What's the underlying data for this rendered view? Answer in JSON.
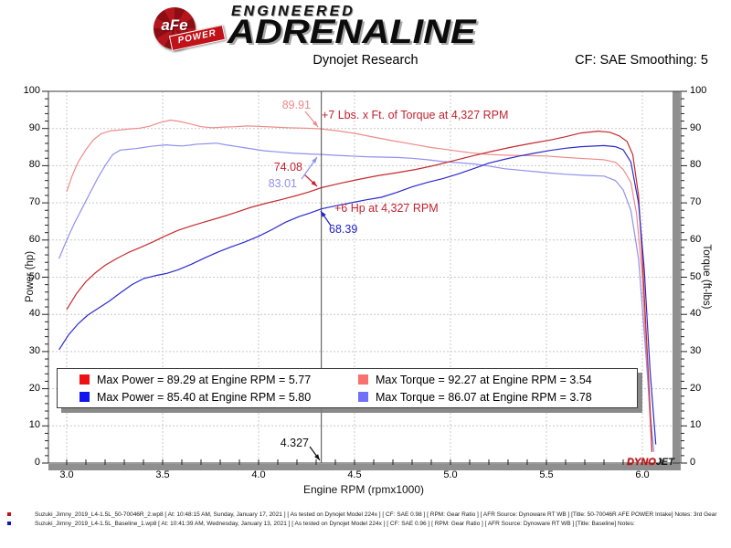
{
  "header": {
    "brand_circle_text": "aFe",
    "brand_banner_text": "POWER",
    "brand_line1": "ENGINEERED",
    "brand_line2": "ADRENALINE",
    "title": "Dynojet Research",
    "cf_label": "CF: SAE Smoothing: 5"
  },
  "chart_data": {
    "type": "line",
    "title": "Dynojet Research",
    "xlabel": "Engine RPM (rpmx1000)",
    "ylabel_left": "Power (hp)",
    "ylabel_right": "Torque (ft-lbs)",
    "xlim": [
      2.9,
      6.2
    ],
    "ylim": [
      0,
      100
    ],
    "grid": true,
    "x_ticks": [
      "3.0",
      "3.5",
      "4.0",
      "4.5",
      "5.0",
      "5.5",
      "6.0"
    ],
    "y_ticks": [
      "0",
      "10",
      "20",
      "30",
      "40",
      "50",
      "60",
      "70",
      "80",
      "90",
      "100"
    ],
    "cursor_rpm": 4.327,
    "series": [
      {
        "name": "torque-intake",
        "color": "#ee8b8b",
        "points": [
          [
            3.0,
            73
          ],
          [
            3.03,
            77.5
          ],
          [
            3.06,
            81
          ],
          [
            3.1,
            84.3
          ],
          [
            3.14,
            87
          ],
          [
            3.18,
            88.6
          ],
          [
            3.23,
            89.4
          ],
          [
            3.28,
            89.6
          ],
          [
            3.33,
            89.9
          ],
          [
            3.38,
            90.1
          ],
          [
            3.43,
            90.6
          ],
          [
            3.48,
            91.5
          ],
          [
            3.54,
            92.27
          ],
          [
            3.59,
            91.9
          ],
          [
            3.64,
            91.3
          ],
          [
            3.7,
            90.5
          ],
          [
            3.76,
            90.2
          ],
          [
            3.82,
            90.4
          ],
          [
            3.88,
            90.5
          ],
          [
            3.94,
            90.7
          ],
          [
            4.0,
            90.6
          ],
          [
            4.08,
            90.4
          ],
          [
            4.16,
            90.2
          ],
          [
            4.24,
            90.1
          ],
          [
            4.327,
            89.91
          ],
          [
            4.42,
            89.3
          ],
          [
            4.5,
            88.7
          ],
          [
            4.6,
            87.7
          ],
          [
            4.7,
            86.7
          ],
          [
            4.8,
            85.8
          ],
          [
            4.9,
            84.9
          ],
          [
            5.0,
            84.2
          ],
          [
            5.1,
            83.5
          ],
          [
            5.2,
            83.0
          ],
          [
            5.3,
            82.8
          ],
          [
            5.4,
            82.7
          ],
          [
            5.5,
            82.6
          ],
          [
            5.6,
            82.2
          ],
          [
            5.7,
            81.9
          ],
          [
            5.8,
            81.6
          ],
          [
            5.86,
            80.9
          ],
          [
            5.9,
            79.0
          ],
          [
            5.94,
            75.5
          ],
          [
            5.97,
            67
          ],
          [
            6.0,
            50
          ],
          [
            6.02,
            30
          ],
          [
            6.04,
            12
          ],
          [
            6.05,
            3
          ]
        ]
      },
      {
        "name": "torque-baseline",
        "color": "#9090ee",
        "points": [
          [
            2.96,
            55
          ],
          [
            3.0,
            60
          ],
          [
            3.04,
            64.5
          ],
          [
            3.08,
            68.5
          ],
          [
            3.12,
            72.5
          ],
          [
            3.16,
            76.5
          ],
          [
            3.2,
            80
          ],
          [
            3.24,
            83
          ],
          [
            3.28,
            84.2
          ],
          [
            3.32,
            84.4
          ],
          [
            3.36,
            84.6
          ],
          [
            3.4,
            84.9
          ],
          [
            3.44,
            85.2
          ],
          [
            3.48,
            85.4
          ],
          [
            3.52,
            85.6
          ],
          [
            3.56,
            85.4
          ],
          [
            3.6,
            85.3
          ],
          [
            3.64,
            85.5
          ],
          [
            3.68,
            85.8
          ],
          [
            3.73,
            85.9
          ],
          [
            3.78,
            86.07
          ],
          [
            3.83,
            85.6
          ],
          [
            3.88,
            85.2
          ],
          [
            3.93,
            84.8
          ],
          [
            3.98,
            84.4
          ],
          [
            4.03,
            84.0
          ],
          [
            4.1,
            83.7
          ],
          [
            4.17,
            83.4
          ],
          [
            4.24,
            83.2
          ],
          [
            4.327,
            83.01
          ],
          [
            4.4,
            82.8
          ],
          [
            4.48,
            82.6
          ],
          [
            4.56,
            82.4
          ],
          [
            4.64,
            82.3
          ],
          [
            4.72,
            82.2
          ],
          [
            4.8,
            82.0
          ],
          [
            4.88,
            81.6
          ],
          [
            4.96,
            81.1
          ],
          [
            5.04,
            80.8
          ],
          [
            5.12,
            80.5
          ],
          [
            5.2,
            79.9
          ],
          [
            5.28,
            79.2
          ],
          [
            5.36,
            78.8
          ],
          [
            5.44,
            78.4
          ],
          [
            5.52,
            78.0
          ],
          [
            5.6,
            77.7
          ],
          [
            5.7,
            77.4
          ],
          [
            5.8,
            77.2
          ],
          [
            5.86,
            76.0
          ],
          [
            5.9,
            73.5
          ],
          [
            5.94,
            68
          ],
          [
            5.98,
            55
          ],
          [
            6.01,
            35
          ],
          [
            6.04,
            14
          ],
          [
            6.06,
            3
          ]
        ]
      },
      {
        "name": "power-intake",
        "color": "#c62a2e",
        "points": [
          [
            3.0,
            41.3
          ],
          [
            3.05,
            45.5
          ],
          [
            3.1,
            48.8
          ],
          [
            3.15,
            51.2
          ],
          [
            3.2,
            53.2
          ],
          [
            3.26,
            55
          ],
          [
            3.32,
            56.6
          ],
          [
            3.38,
            57.9
          ],
          [
            3.45,
            59.5
          ],
          [
            3.51,
            61
          ],
          [
            3.58,
            62.6
          ],
          [
            3.65,
            63.8
          ],
          [
            3.72,
            64.9
          ],
          [
            3.8,
            66.1
          ],
          [
            3.88,
            67.4
          ],
          [
            3.96,
            68.8
          ],
          [
            4.04,
            69.9
          ],
          [
            4.12,
            70.9
          ],
          [
            4.2,
            72.0
          ],
          [
            4.26,
            72.9
          ],
          [
            4.327,
            74.08
          ],
          [
            4.42,
            75.2
          ],
          [
            4.52,
            76.3
          ],
          [
            4.62,
            77.3
          ],
          [
            4.72,
            78.1
          ],
          [
            4.82,
            79.0
          ],
          [
            4.92,
            80.1
          ],
          [
            5.02,
            81.4
          ],
          [
            5.12,
            82.7
          ],
          [
            5.22,
            83.9
          ],
          [
            5.32,
            85.0
          ],
          [
            5.42,
            86.0
          ],
          [
            5.52,
            86.9
          ],
          [
            5.6,
            87.8
          ],
          [
            5.68,
            88.8
          ],
          [
            5.77,
            89.29
          ],
          [
            5.83,
            89.0
          ],
          [
            5.88,
            88.0
          ],
          [
            5.92,
            86.5
          ],
          [
            5.95,
            83
          ],
          [
            5.98,
            72
          ],
          [
            6.0,
            55
          ],
          [
            6.02,
            35
          ],
          [
            6.04,
            15
          ],
          [
            6.05,
            3
          ]
        ]
      },
      {
        "name": "power-baseline",
        "color": "#2a2ace",
        "points": [
          [
            2.96,
            30.5
          ],
          [
            3.01,
            34.5
          ],
          [
            3.06,
            37.5
          ],
          [
            3.11,
            39.8
          ],
          [
            3.16,
            41.5
          ],
          [
            3.22,
            43.5
          ],
          [
            3.28,
            45.8
          ],
          [
            3.34,
            48
          ],
          [
            3.4,
            49.6
          ],
          [
            3.46,
            50.4
          ],
          [
            3.52,
            51
          ],
          [
            3.58,
            52
          ],
          [
            3.65,
            53.5
          ],
          [
            3.72,
            55.2
          ],
          [
            3.79,
            56.8
          ],
          [
            3.86,
            58.2
          ],
          [
            3.93,
            59.5
          ],
          [
            4.0,
            61
          ],
          [
            4.07,
            62.8
          ],
          [
            4.14,
            64.8
          ],
          [
            4.21,
            66.3
          ],
          [
            4.27,
            67.3
          ],
          [
            4.327,
            68.39
          ],
          [
            4.4,
            69.2
          ],
          [
            4.48,
            70
          ],
          [
            4.56,
            70.8
          ],
          [
            4.64,
            71.5
          ],
          [
            4.72,
            72.8
          ],
          [
            4.8,
            74.3
          ],
          [
            4.88,
            75.5
          ],
          [
            4.96,
            76.5
          ],
          [
            5.04,
            77.8
          ],
          [
            5.12,
            79.2
          ],
          [
            5.2,
            80.7
          ],
          [
            5.28,
            81.7
          ],
          [
            5.36,
            82.6
          ],
          [
            5.44,
            83.4
          ],
          [
            5.52,
            84.1
          ],
          [
            5.6,
            84.7
          ],
          [
            5.68,
            85.1
          ],
          [
            5.8,
            85.4
          ],
          [
            5.86,
            85.1
          ],
          [
            5.9,
            84.3
          ],
          [
            5.94,
            81
          ],
          [
            5.98,
            70
          ],
          [
            6.01,
            52
          ],
          [
            6.04,
            25
          ],
          [
            6.07,
            5
          ]
        ]
      }
    ],
    "legend": [
      {
        "color": "#ee1111",
        "label": "Max Power = 89.29 at Engine RPM = 5.77"
      },
      {
        "color": "#f97070",
        "label": "Max Torque = 92.27 at Engine RPM = 3.54"
      },
      {
        "color": "#1414ee",
        "label": "Max Power = 85.40 at Engine RPM = 5.80"
      },
      {
        "color": "#7070f9",
        "label": "Max Torque = 86.07 at Engine RPM = 3.78"
      }
    ],
    "annotations": {
      "torque_intake_value": "89.91",
      "torque_gain_note": "+7 Lbs. x Ft. of Torque at 4,327 RPM",
      "power_intake_value": "74.08",
      "torque_baseline_value": "83.01",
      "power_gain_note": "+6 Hp at 4,327 RPM",
      "power_baseline_value": "68.39",
      "cursor_label": "4.327"
    },
    "colors": {
      "annotation_red": "#c5212f",
      "annotation_pink": "#ee8b8b",
      "annotation_lightblue": "#9090ee",
      "annotation_blue": "#2222cc",
      "grid": "#c9c9c9",
      "frame": "#3a3a3a",
      "cursor": "#4a4a4a",
      "shadow_bar": "#8f8f8f"
    }
  },
  "watermark": {
    "part1": "DYNO",
    "part2": "JET"
  },
  "footer": {
    "notes": [
      {
        "bullet_color": "#c41111",
        "text": "Suzuki_Jimny_2019_L4-1.5L_50-70046R_2.wp8 [ At: 10:48:15 AM, Sunday, January 17, 2021 ] [ As tested on Dynojet Model 224x ] [ CF: SAE 0.98 ] [ RPM: Gear Ratio ] [ AFR Source: Dynoware RT WB ] [Title: 50-70046R AFE POWER Intake]  Notes: 3rd Gear"
      },
      {
        "bullet_color": "#1414c4",
        "text": "Suzuki_Jimny_2019_L4-1.5L_Baseline_1.wp8 [ At: 10:41:39 AM, Wednesday, January 13, 2021 ] [ As tested on Dynojet Model 224x ] [ CF: SAE 0.96 ] [ RPM: Gear Ratio ] [ AFR Source: Dynoware RT WB ] [Title: Baseline]  Notes:"
      }
    ]
  }
}
